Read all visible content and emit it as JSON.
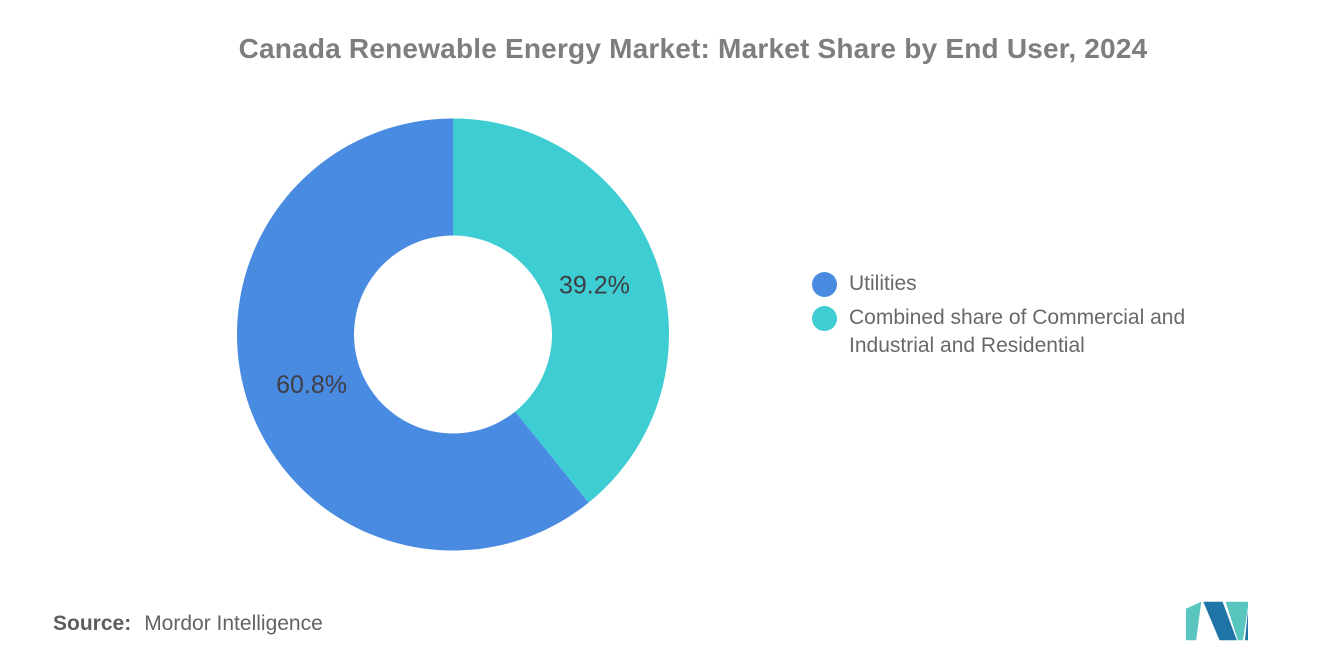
{
  "header": {
    "title": "Canada Renewable Energy Market: Market Share by End User, 2024"
  },
  "chart_data": {
    "type": "pie",
    "subtype": "donut",
    "title": "Canada Renewable Energy Market: Market Share by End User, 2024",
    "categories": [
      "Utilities",
      "Combined share of Commercial and Industrial and Residential"
    ],
    "values": [
      60.8,
      39.2
    ],
    "labels": [
      "60.8%",
      "39.2%"
    ],
    "colors": [
      "#4A8BE2",
      "#3DCDD3"
    ],
    "legend_position": "right",
    "inner_radius_ratio": 0.46,
    "start_angle_deg": 0,
    "direction": "clockwise",
    "slices_clockwise": [
      {
        "name": "Combined share of Commercial and Industrial and Residential",
        "value": 39.2,
        "label": "39.2%",
        "color": "#3DCDD3"
      },
      {
        "name": "Utilities",
        "value": 60.8,
        "label": "60.8%",
        "color": "#4A8BE2"
      }
    ],
    "label_color": "#3E3E44"
  },
  "legend": {
    "items": [
      {
        "label": "Utilities",
        "color": "#4A8BE2"
      },
      {
        "label": "Combined share of Commercial and Industrial and Residential",
        "color": "#3DCDD3"
      }
    ]
  },
  "source": {
    "label": "Source:",
    "value": "Mordor Intelligence"
  },
  "logo": {
    "name": "mordor-intelligence-logo",
    "teal": "#58C5BE",
    "blue": "#1F74A8"
  }
}
